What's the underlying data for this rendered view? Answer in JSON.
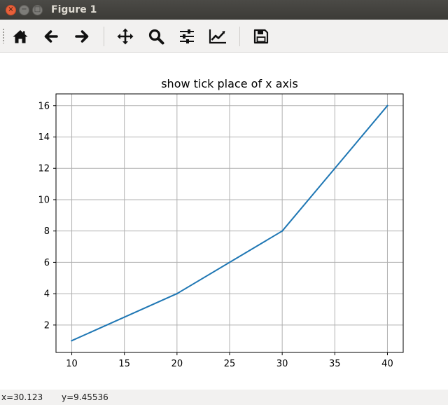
{
  "window": {
    "title": "Figure 1",
    "close_glyph": "×",
    "minimize_glyph": "−",
    "maximize_glyph": "□"
  },
  "toolbar": {
    "buttons": [
      {
        "icon": "home-icon",
        "tooltip": "Reset original view"
      },
      {
        "icon": "back-arrow-icon",
        "tooltip": "Back to previous view"
      },
      {
        "icon": "forward-arrow-icon",
        "tooltip": "Forward to next view"
      },
      {
        "icon": "pan-move-icon",
        "tooltip": "Pan axes"
      },
      {
        "icon": "zoom-magnifier-icon",
        "tooltip": "Zoom to rectangle"
      },
      {
        "icon": "subplots-sliders-icon",
        "tooltip": "Configure subplots"
      },
      {
        "icon": "edit-axes-icon",
        "tooltip": "Edit axis, curve and image parameters"
      },
      {
        "icon": "save-floppy-icon",
        "tooltip": "Save the figure"
      }
    ]
  },
  "status": {
    "x_readout": "x=30.123",
    "y_readout": "y=9.45536"
  },
  "colors": {
    "line": "#1f77b4",
    "grid": "#b0b0b0",
    "axes": "#000000",
    "canvas": "#ffffff"
  },
  "chart_data": {
    "type": "line",
    "title": "show tick place of x axis",
    "xlabel": "",
    "ylabel": "",
    "x": [
      10,
      20,
      30,
      40
    ],
    "series": [
      {
        "values": [
          1,
          4,
          8,
          16
        ],
        "color": "#1f77b4"
      }
    ],
    "xticks": [
      10,
      15,
      20,
      25,
      30,
      35,
      40
    ],
    "yticks": [
      2,
      4,
      6,
      8,
      10,
      12,
      14,
      16
    ],
    "xlim": [
      8.5,
      41.5
    ],
    "ylim": [
      0.25,
      16.75
    ],
    "grid": true,
    "legend": "none"
  }
}
